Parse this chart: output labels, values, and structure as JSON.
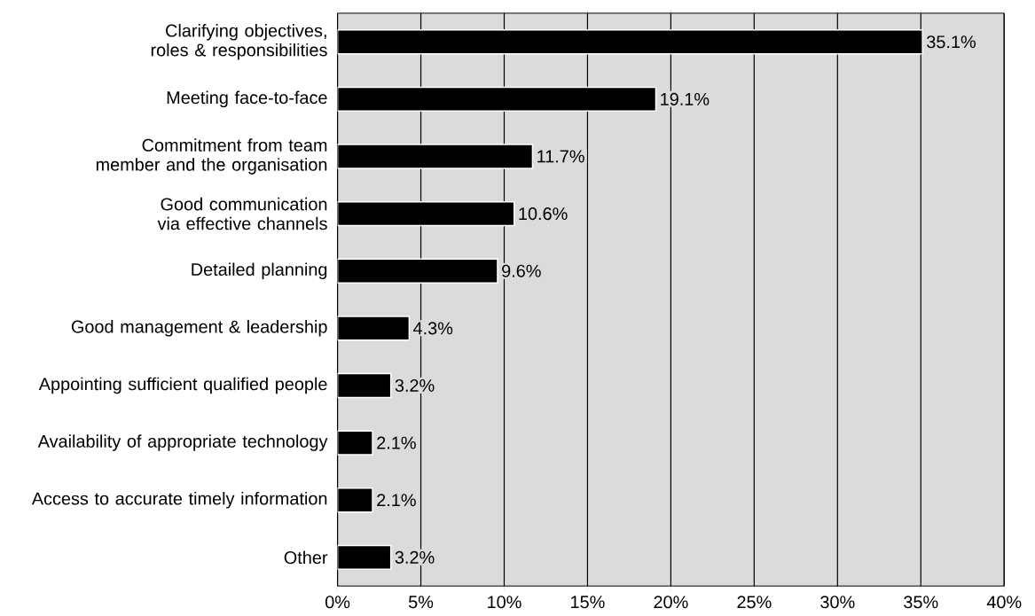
{
  "chart_data": {
    "type": "bar",
    "orientation": "horizontal",
    "categories": [
      "Clarifying objectives, roles & responsibilities",
      "Meeting face-to-face",
      "Commitment from team member and the organisation",
      "Good communication via effective channels",
      "Detailed planning",
      "Good management & leadership",
      "Appointing sufficient qualified people",
      "Availability of appropriate technology",
      "Access to accurate timely information",
      "Other"
    ],
    "values": [
      35.1,
      19.1,
      11.7,
      10.6,
      9.6,
      4.3,
      3.2,
      2.1,
      2.1,
      3.2
    ],
    "value_labels": [
      "35.1%",
      "19.1%",
      "11.7%",
      "10.6%",
      "9.6%",
      "4.3%",
      "3.2%",
      "2.1%",
      "2.1%",
      "3.2%"
    ],
    "color": "#000000",
    "xlim": [
      0,
      40
    ],
    "xticks": [
      {
        "value": 0,
        "label": "0%"
      },
      {
        "value": 5,
        "label": "5%"
      },
      {
        "value": 10,
        "label": "10%"
      },
      {
        "value": 15,
        "label": "15%"
      },
      {
        "value": 20,
        "label": "20%"
      },
      {
        "value": 25,
        "label": "25%"
      },
      {
        "value": 30,
        "label": "30%"
      },
      {
        "value": 35,
        "label": "35%"
      },
      {
        "value": 40,
        "label": "40%"
      }
    ],
    "grid": "x"
  }
}
